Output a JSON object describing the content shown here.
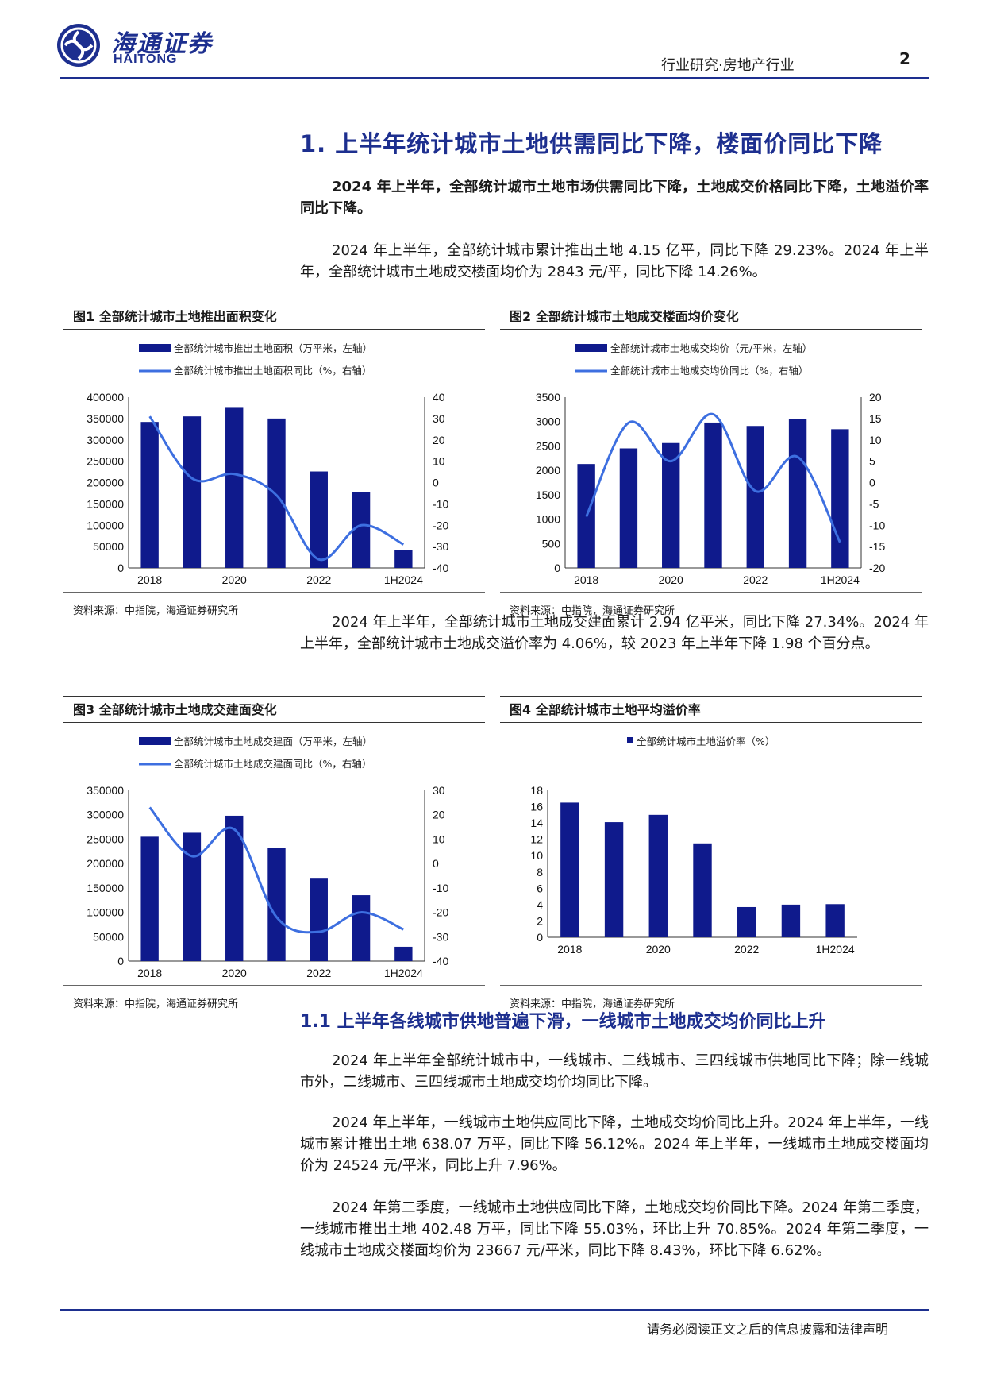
{
  "header": {
    "logo_cn": "海通证券",
    "logo_en": "HAITONG",
    "section": "行业研究·房地产行业",
    "page_number": "2"
  },
  "section1": {
    "title": "1. 上半年统计城市土地供需同比下降，楼面价同比下降",
    "summary": "2024 年上半年，全部统计城市土地市场供需同比下降，土地成交价格同比下降，土地溢价率同比下降。",
    "para1": "2024 年上半年，全部统计城市累计推出土地 4.15 亿平，同比下降 29.23%。2024 年上半年，全部统计城市土地成交楼面均价为 2843 元/平，同比下降 14.26%。",
    "para2": "2024 年上半年，全部统计城市土地成交建面累计 2.94 亿平米，同比下降 27.34%。2024 年上半年，全部统计城市土地成交溢价率为 4.06%，较 2023 年上半年下降 1.98 个百分点。"
  },
  "section1_1": {
    "title": "1.1 上半年各线城市供地普遍下滑，一线城市土地成交均价同比上升",
    "para1": "2024 年上半年全部统计城市中，一线城市、二线城市、三四线城市供地同比下降；除一线城市外，二线城市、三四线城市土地成交均价均同比下降。",
    "para2": "2024 年上半年，一线城市土地供应同比下降，土地成交均价同比上升。2024 年上半年，一线城市累计推出土地 638.07 万平，同比下降 56.12%。2024 年上半年，一线城市土地成交楼面均价为 24524 元/平米，同比上升 7.96%。",
    "para3": "2024 年第二季度，一线城市土地供应同比下降，土地成交均价同比下降。2024 年第二季度，一线城市推出土地 402.48 万平，同比下降 55.03%，环比上升 70.85%。2024 年第二季度，一线城市土地成交楼面均价为 23667 元/平米，同比下降 8.43%，环比下降 6.62%。"
  },
  "figures": {
    "fig1_title": "图1  全部统计城市土地推出面积变化",
    "fig2_title": "图2  全部统计城市土地成交楼面均价变化",
    "fig3_title": "图3  全部统计城市土地成交建面变化",
    "fig4_title": "图4  全部统计城市土地平均溢价率",
    "source": "资料来源：中指院，海通证券研究所"
  },
  "footer": {
    "disclaimer": "请务必阅读正文之后的信息披露和法律声明"
  },
  "colors": {
    "bar": "#0f1a8c",
    "line": "#3d6fe0",
    "brand": "#1d2f8f"
  },
  "chart_data": [
    {
      "type": "bar",
      "id": "fig1",
      "categories": [
        "2018",
        "2019",
        "2020",
        "2021",
        "2022",
        "2023",
        "1H2024"
      ],
      "x_tick_labels": [
        "2018",
        "",
        "2020",
        "",
        "2022",
        "",
        "1H2024"
      ],
      "series": [
        {
          "name": "全部统计城市推出土地面积（万平米，左轴）",
          "type": "bar",
          "axis": "left",
          "values": [
            342000,
            355000,
            375000,
            350000,
            226000,
            178000,
            41500
          ]
        },
        {
          "name": "全部统计城市推出土地面积同比（%，右轴）",
          "type": "line",
          "axis": "right",
          "values": [
            31,
            2,
            4,
            -6,
            -36,
            -20,
            -29
          ]
        }
      ],
      "ylim_left": [
        0,
        400000
      ],
      "yticks_left": [
        0,
        50000,
        100000,
        150000,
        200000,
        250000,
        300000,
        350000,
        400000
      ],
      "ylim_right": [
        -40,
        40
      ],
      "yticks_right": [
        -40,
        -30,
        -20,
        -10,
        0,
        10,
        20,
        30,
        40
      ],
      "legend": "top"
    },
    {
      "type": "bar",
      "id": "fig2",
      "categories": [
        "2018",
        "2019",
        "2020",
        "2021",
        "2022",
        "2023",
        "1H2024"
      ],
      "x_tick_labels": [
        "2018",
        "",
        "2020",
        "",
        "2022",
        "",
        "1H2024"
      ],
      "series": [
        {
          "name": "全部统计城市土地成交均价（元/平米，左轴）",
          "type": "bar",
          "axis": "left",
          "values": [
            2130,
            2450,
            2560,
            2980,
            2910,
            3060,
            2843
          ]
        },
        {
          "name": "全部统计城市土地成交均价同比（%，右轴）",
          "type": "line",
          "axis": "right",
          "values": [
            -8,
            14,
            5,
            16,
            -2,
            6,
            -14
          ]
        }
      ],
      "ylim_left": [
        0,
        3500
      ],
      "yticks_left": [
        0,
        500,
        1000,
        1500,
        2000,
        2500,
        3000,
        3500
      ],
      "ylim_right": [
        -20,
        20
      ],
      "yticks_right": [
        -20,
        -15,
        -10,
        -5,
        0,
        5,
        10,
        15,
        20
      ],
      "legend": "top"
    },
    {
      "type": "bar",
      "id": "fig3",
      "categories": [
        "2018",
        "2019",
        "2020",
        "2021",
        "2022",
        "2023",
        "1H2024"
      ],
      "x_tick_labels": [
        "2018",
        "",
        "2020",
        "",
        "2022",
        "",
        "1H2024"
      ],
      "series": [
        {
          "name": "全部统计城市土地成交建面（万平米，左轴）",
          "type": "bar",
          "axis": "left",
          "values": [
            255000,
            263000,
            298000,
            232000,
            169000,
            135000,
            29400
          ]
        },
        {
          "name": "全部统计城市土地成交建面同比（%，右轴）",
          "type": "line",
          "axis": "right",
          "values": [
            23,
            3,
            14,
            -22,
            -28,
            -20,
            -27
          ]
        }
      ],
      "ylim_left": [
        0,
        350000
      ],
      "yticks_left": [
        0,
        50000,
        100000,
        150000,
        200000,
        250000,
        300000,
        350000
      ],
      "ylim_right": [
        -40,
        30
      ],
      "yticks_right": [
        -40,
        -30,
        -20,
        -10,
        0,
        10,
        20,
        30
      ],
      "legend": "top"
    },
    {
      "type": "bar",
      "id": "fig4",
      "categories": [
        "2018",
        "2019",
        "2020",
        "2021",
        "2022",
        "2023",
        "1H2024"
      ],
      "x_tick_labels": [
        "2018",
        "",
        "2020",
        "",
        "2022",
        "",
        "1H2024"
      ],
      "series": [
        {
          "name": "全部统计城市土地溢价率（%）",
          "type": "bar",
          "axis": "left",
          "values": [
            16.5,
            14.1,
            15.0,
            11.5,
            3.7,
            4.0,
            4.06
          ]
        }
      ],
      "ylim_left": [
        0,
        18
      ],
      "yticks_left": [
        0,
        2,
        4,
        6,
        8,
        10,
        12,
        14,
        16,
        18
      ],
      "legend": "top"
    }
  ]
}
